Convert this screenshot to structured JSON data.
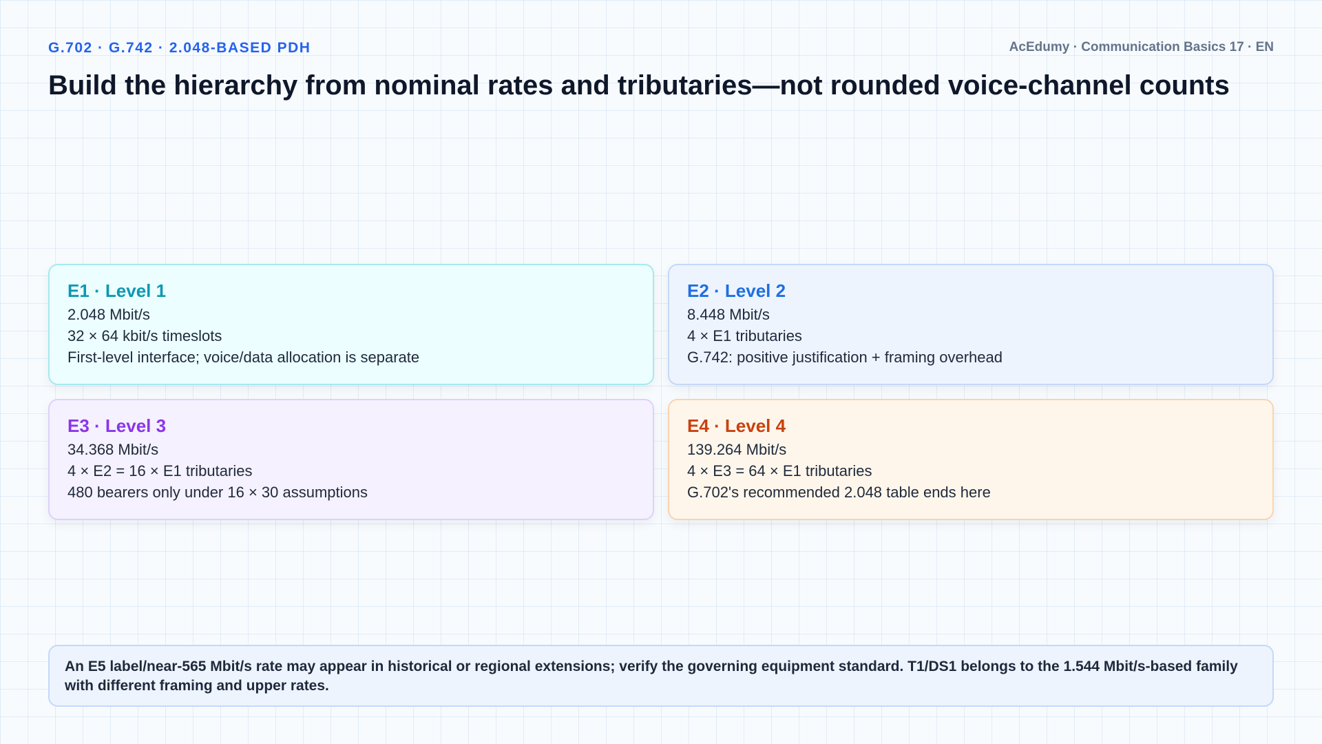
{
  "header": {
    "kicker": "G.702 · G.742 · 2.048-BASED PDH",
    "brand": "AcEdumy · Communication Basics 17 · EN",
    "title": "Build the hierarchy from nominal rates and tributaries—not rounded voice-channel counts"
  },
  "cards": [
    {
      "title": "E1 · Level 1",
      "lines": [
        "2.048 Mbit/s",
        "32 × 64 kbit/s timeslots",
        "First-level interface; voice/data allocation is separate"
      ],
      "accent": "#0e98b1"
    },
    {
      "title": "E2 · Level 2",
      "lines": [
        "8.448 Mbit/s",
        "4 × E1 tributaries",
        "G.742: positive justification + framing overhead"
      ],
      "accent": "#1f6fe0"
    },
    {
      "title": "E3 · Level 3",
      "lines": [
        "34.368 Mbit/s",
        "4 × E2 = 16 × E1 tributaries",
        "480 bearers only under 16 × 30 assumptions"
      ],
      "accent": "#8b35e8"
    },
    {
      "title": "E4 · Level 4",
      "lines": [
        "139.264 Mbit/s",
        "4 × E3 = 64 × E1 tributaries",
        "G.702's recommended 2.048 table ends here"
      ],
      "accent": "#c8410e"
    }
  ],
  "note": {
    "text": "An E5 label/near-565 Mbit/s rate may appear in historical or regional extensions; verify the governing equipment standard. T1/DS1 belongs to the 1.544 Mbit/s-based family with different framing and upper rates."
  }
}
